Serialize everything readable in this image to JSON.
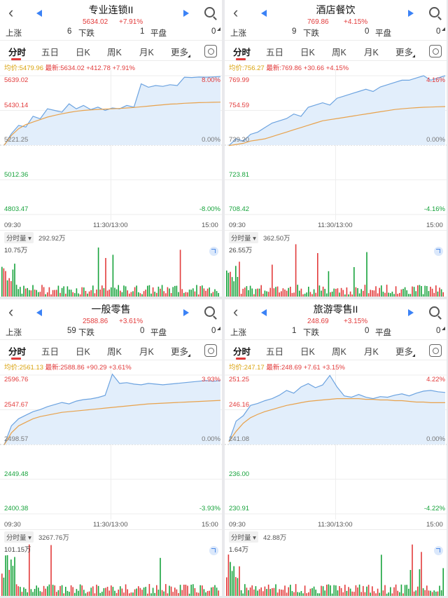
{
  "colors": {
    "up": "#e23b3b",
    "down": "#17a33c",
    "flat": "#777777",
    "avg_line": "#e8a24c",
    "price_line": "#6ca3e0",
    "fill": "#e2eefb"
  },
  "icons": {
    "back": "back-icon",
    "prev": "prev-arrow-icon",
    "next": "next-arrow-icon",
    "search": "search-icon",
    "settings": "settings-icon",
    "zoom": "zoom-icon"
  },
  "common": {
    "rise_label": "上涨",
    "fall_label": "下跌",
    "flat_label": "平盘",
    "tabs": [
      "分时",
      "五日",
      "日K",
      "周K",
      "月K",
      "更多"
    ],
    "time_start": "09:30",
    "time_mid": "11:30/13:00",
    "time_end": "15:00",
    "vol_select": "分时量 ▾"
  },
  "panels": [
    {
      "title": "专业连锁II",
      "price": "5634.02",
      "change_pct": "+7.91%",
      "rise": "6",
      "fall": "1",
      "flat": "0",
      "avg_label": "均价:5479.96",
      "last_label": "最新:5634.02 +412.78 +7.91%",
      "y_labels": [
        "5639.02",
        "5430.14",
        "5221.25",
        "5012.36",
        "4803.47"
      ],
      "pct_labels": [
        "8.00%",
        "",
        "0.00%",
        "",
        "-8.00%"
      ],
      "vol_total": "292.92万",
      "vol_max": "10.75万",
      "chart_data": {
        "type": "line",
        "x": [
          "09:30",
          "11:30/13:00",
          "15:00"
        ],
        "ylim": [
          4803.47,
          5639.02
        ],
        "base": 5221.25,
        "price": [
          5221,
          5290,
          5340,
          5330,
          5395,
          5380,
          5440,
          5430,
          5420,
          5470,
          5440,
          5460,
          5435,
          5450,
          5430,
          5445,
          5440,
          5460,
          5450,
          5590,
          5570,
          5580,
          5575,
          5585,
          5580,
          5630,
          5628,
          5631,
          5630,
          5632,
          5634
        ],
        "avg": [
          5221,
          5280,
          5320,
          5345,
          5360,
          5375,
          5390,
          5400,
          5410,
          5418,
          5425,
          5430,
          5433,
          5436,
          5438,
          5440,
          5442,
          5445,
          5448,
          5452,
          5456,
          5460,
          5464,
          5468,
          5470,
          5473,
          5475,
          5477,
          5478,
          5479,
          5480
        ]
      }
    },
    {
      "title": "酒店餐饮",
      "price": "769.86",
      "change_pct": "+4.15%",
      "rise": "9",
      "fall": "0",
      "flat": "0",
      "avg_label": "均价:756.27",
      "last_label": "最新:769.86 +30.66 +4.15%",
      "y_labels": [
        "769.99",
        "754.59",
        "739.20",
        "723.81",
        "708.42"
      ],
      "pct_labels": [
        "4.16%",
        "",
        "0.00%",
        "",
        "-4.16%"
      ],
      "vol_total": "362.50万",
      "vol_max": "26.55万",
      "chart_data": {
        "type": "line",
        "x": [
          "09:30",
          "11:30/13:00",
          "15:00"
        ],
        "ylim": [
          708.42,
          769.99
        ],
        "base": 739.2,
        "price": [
          739,
          742,
          741,
          744,
          745,
          747,
          749,
          750,
          751,
          753,
          752,
          756,
          757,
          758,
          757,
          760,
          761,
          762,
          763,
          764,
          763,
          765,
          766,
          767,
          768,
          768,
          769,
          770,
          768,
          769,
          770
        ],
        "avg": [
          739,
          739.5,
          740,
          741,
          741.5,
          742,
          743,
          744,
          745,
          746,
          747,
          748,
          749,
          750,
          750.5,
          751,
          751.5,
          752,
          752.5,
          753,
          753.5,
          754,
          754.5,
          755,
          755.3,
          755.6,
          755.8,
          756,
          756.1,
          756.2,
          756.3
        ]
      }
    },
    {
      "title": "一般零售",
      "price": "2588.86",
      "change_pct": "+3.61%",
      "rise": "59",
      "fall": "0",
      "flat": "0",
      "avg_label": "均价:2561.13",
      "last_label": "最新:2588.86 +90.29 +3.61%",
      "y_labels": [
        "2596.76",
        "2547.67",
        "2498.57",
        "2449.48",
        "2400.38"
      ],
      "pct_labels": [
        "3.93%",
        "",
        "0.00%",
        "",
        "-3.93%"
      ],
      "vol_total": "3267.76万",
      "vol_max": "101.15万",
      "chart_data": {
        "type": "line",
        "x": [
          "09:30",
          "11:30/13:00",
          "15:00"
        ],
        "ylim": [
          2400.38,
          2596.76
        ],
        "base": 2498.57,
        "price": [
          2498,
          2525,
          2535,
          2540,
          2545,
          2548,
          2552,
          2555,
          2558,
          2556,
          2560,
          2562,
          2563,
          2565,
          2568,
          2598,
          2585,
          2586,
          2584,
          2583,
          2585,
          2584,
          2583,
          2584,
          2585,
          2586,
          2587,
          2588,
          2589,
          2588,
          2589
        ],
        "avg": [
          2498,
          2515,
          2525,
          2530,
          2535,
          2538,
          2540,
          2542,
          2544,
          2545,
          2546,
          2547,
          2548,
          2549,
          2550,
          2551,
          2552,
          2553,
          2554,
          2555,
          2556,
          2556.5,
          2557,
          2557.5,
          2558,
          2558.5,
          2559,
          2559.5,
          2560,
          2560.5,
          2561
        ]
      }
    },
    {
      "title": "旅游零售II",
      "price": "248.69",
      "change_pct": "+3.15%",
      "rise": "1",
      "fall": "0",
      "flat": "0",
      "avg_label": "均价:247.17",
      "last_label": "最新:248.69 +7.61 +3.15%",
      "y_labels": [
        "251.25",
        "246.16",
        "241.08",
        "236.00",
        "230.91"
      ],
      "pct_labels": [
        "4.22%",
        "",
        "0.00%",
        "",
        "-4.22%"
      ],
      "vol_total": "42.88万",
      "vol_max": "1.64万",
      "chart_data": {
        "type": "line",
        "x": [
          "09:30",
          "11:30/13:00",
          "15:00"
        ],
        "ylim": [
          230.91,
          251.25
        ],
        "base": 241.08,
        "price": [
          241.5,
          244.5,
          245.3,
          246.8,
          247.1,
          247.5,
          247.8,
          248.3,
          249.0,
          248.6,
          249.5,
          250.0,
          249.4,
          249.8,
          251.2,
          249.5,
          248.2,
          248.0,
          248.4,
          248.0,
          247.8,
          248.1,
          248.0,
          248.3,
          248.5,
          248.2,
          248.6,
          248.9,
          249.0,
          248.8,
          248.7
        ],
        "avg": [
          241.5,
          243.0,
          244.2,
          245.0,
          245.5,
          245.9,
          246.2,
          246.5,
          246.8,
          247.0,
          247.2,
          247.4,
          247.5,
          247.6,
          247.7,
          247.8,
          247.8,
          247.8,
          247.8,
          247.7,
          247.7,
          247.6,
          247.6,
          247.5,
          247.5,
          247.4,
          247.3,
          247.3,
          247.2,
          247.2,
          247.2
        ]
      }
    }
  ]
}
